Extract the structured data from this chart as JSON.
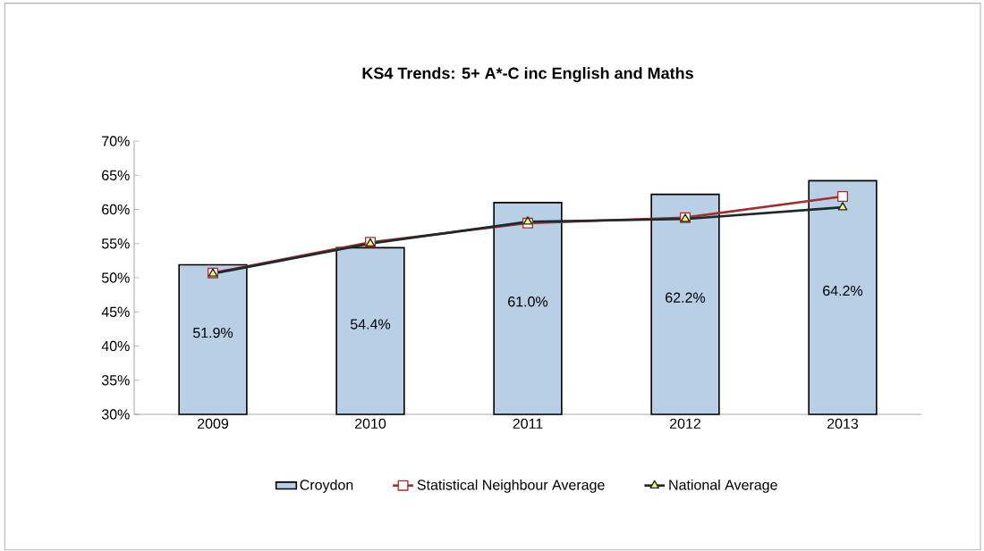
{
  "chart_data": {
    "type": "bar",
    "title": "KS4 Trends: 5+ A*-C inc English and Maths",
    "categories": [
      "2009",
      "2010",
      "2011",
      "2012",
      "2013"
    ],
    "series": [
      {
        "name": "Croydon",
        "color": "#b8cfe6",
        "values": [
          51.9,
          54.4,
          61.0,
          62.2,
          64.2
        ],
        "value_labels": [
          "51.9%",
          "54.4%",
          "61.0%",
          "62.2%",
          "64.2%"
        ]
      },
      {
        "name": "Statistical Neighbour Average",
        "type": "line",
        "color": "#a03030",
        "marker": "square",
        "values": [
          50.7,
          55.2,
          58.0,
          58.8,
          61.9
        ]
      },
      {
        "name": "National Average",
        "type": "line",
        "color": "#1a2a2a",
        "marker": "triangle",
        "values": [
          50.6,
          55.0,
          58.2,
          58.6,
          60.3
        ]
      }
    ],
    "ylim": [
      30,
      70
    ],
    "yticks": [
      {
        "value": 30,
        "label": "30%"
      },
      {
        "value": 35,
        "label": "35%"
      },
      {
        "value": 40,
        "label": "40%"
      },
      {
        "value": 45,
        "label": "45%"
      },
      {
        "value": 50,
        "label": "50%"
      },
      {
        "value": 55,
        "label": "55%"
      },
      {
        "value": 60,
        "label": "60%"
      },
      {
        "value": 65,
        "label": "65%"
      },
      {
        "value": 70,
        "label": "70%"
      }
    ],
    "grid": false,
    "legend": "bottom"
  }
}
